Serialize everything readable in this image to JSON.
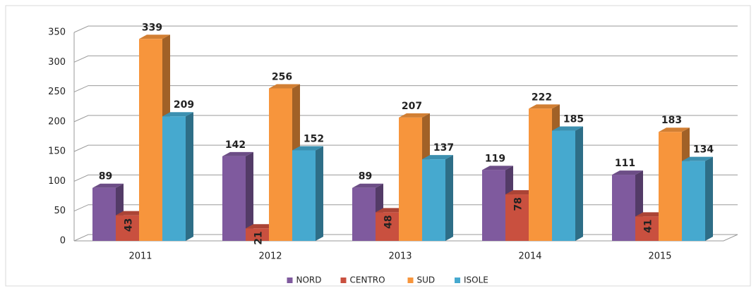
{
  "chart_data": {
    "type": "bar",
    "categories": [
      "2011",
      "2012",
      "2013",
      "2014",
      "2015"
    ],
    "series": [
      {
        "name": "NORD",
        "color": "#7f5a9e",
        "values": [
          89,
          142,
          89,
          119,
          111
        ]
      },
      {
        "name": "CENTRO",
        "color": "#c9503f",
        "values": [
          43,
          21,
          48,
          78,
          41
        ]
      },
      {
        "name": "SUD",
        "color": "#f7953c",
        "values": [
          339,
          256,
          207,
          222,
          183
        ]
      },
      {
        "name": "ISOLE",
        "color": "#46a9cf",
        "values": [
          209,
          152,
          137,
          185,
          134
        ]
      }
    ],
    "ylim": [
      0,
      350
    ],
    "yticks": [
      0,
      50,
      100,
      150,
      200,
      250,
      300,
      350
    ],
    "grid": true,
    "legend": "bottom"
  }
}
